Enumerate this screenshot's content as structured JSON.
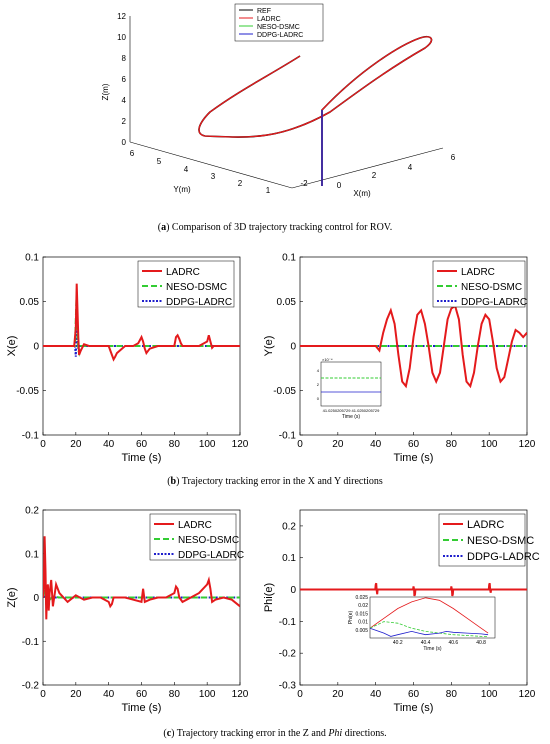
{
  "figure": {
    "captions": {
      "a": {
        "tag": "a",
        "text": " Comparison of 3D trajectory tracking control for ROV."
      },
      "b": {
        "tag": "b",
        "text": " Trajectory tracking error in the X and Y directions"
      },
      "c": {
        "tag": "c",
        "text": " Trajectory tracking error in the Z and ",
        "italic": "Phi",
        "text2": " directions."
      }
    }
  },
  "colors": {
    "ref": "#000000",
    "ladrc": "#e41a1c",
    "neso": "#33cc33",
    "ddpg": "#1f1fcc"
  },
  "chart_data": [
    {
      "type": "line3d",
      "legend": [
        "REF",
        "LADRC",
        "NESO-DSMC",
        "DDPG-LADRC"
      ],
      "xlabel": "X(m)",
      "ylabel": "Y(m)",
      "zlabel": "Z(m)",
      "xticks": [
        -2,
        0,
        2,
        4,
        6
      ],
      "yticks": [
        1,
        2,
        3,
        4,
        5,
        6
      ],
      "zticks": [
        0,
        2,
        4,
        6,
        8,
        10,
        12
      ],
      "legend_position": "top"
    },
    {
      "type": "line",
      "ylabel": "X(e)",
      "xlabel": "Time (s)",
      "xlim": [
        0,
        120
      ],
      "ylim": [
        -0.1,
        0.1
      ],
      "xticks": [
        0,
        20,
        40,
        60,
        80,
        100,
        120
      ],
      "yticks": [
        0.1,
        0.05,
        0,
        -0.05,
        -0.1
      ],
      "legend": [
        "LADRC",
        "NESO-DSMC",
        "DDPG-LADRC"
      ],
      "series": [
        {
          "name": "LADRC",
          "x": [
            0,
            19,
            20,
            20.5,
            21,
            21.5,
            22,
            23,
            25,
            28,
            30,
            40,
            41,
            42,
            43,
            44,
            45,
            50,
            55,
            58,
            60,
            61,
            62,
            63,
            65,
            70,
            80,
            81,
            82,
            83,
            84,
            85,
            90,
            95,
            100,
            101,
            102,
            103,
            104,
            110,
            120
          ],
          "y": [
            0,
            0,
            0.02,
            0.07,
            0.04,
            0.01,
            -0.01,
            -0.005,
            0.002,
            0,
            0,
            0,
            -0.005,
            -0.01,
            -0.015,
            -0.012,
            -0.008,
            0,
            0,
            0.003,
            0.01,
            0.005,
            -0.003,
            -0.008,
            -0.003,
            0,
            0,
            0.01,
            0.012,
            0.008,
            0.003,
            0,
            0,
            0,
            0.005,
            0.012,
            0.005,
            -0.002,
            0,
            0,
            0
          ]
        },
        {
          "name": "NESO-DSMC",
          "x": [
            0,
            19.5,
            20,
            20.5,
            21,
            21.5,
            22,
            23,
            40,
            60,
            80,
            100,
            120
          ],
          "y": [
            0,
            0,
            0.03,
            0.06,
            0.02,
            -0.005,
            -0.008,
            0,
            0,
            0,
            0,
            0,
            0
          ]
        },
        {
          "name": "DDPG-LADRC",
          "x": [
            0,
            19.5,
            20,
            20.5,
            21,
            21.5,
            22,
            23,
            40,
            60,
            80,
            100,
            120
          ],
          "y": [
            0,
            0,
            -0.012,
            0.02,
            0.005,
            -0.003,
            0,
            0,
            0,
            0,
            0,
            0,
            0
          ]
        }
      ]
    },
    {
      "type": "line",
      "ylabel": "Y(e)",
      "xlabel": "Time (s)",
      "xlim": [
        0,
        120
      ],
      "ylim": [
        -0.1,
        0.1
      ],
      "xticks": [
        0,
        20,
        40,
        60,
        80,
        100,
        120
      ],
      "yticks": [
        0.1,
        0.05,
        0,
        -0.05,
        -0.1
      ],
      "legend": [
        "LADRC",
        "NESO-DSMC",
        "DDPG-LADRC"
      ],
      "series": [
        {
          "name": "LADRC",
          "x": [
            0,
            40,
            42,
            44,
            46,
            48,
            50,
            52,
            54,
            56,
            58,
            60,
            62,
            64,
            66,
            68,
            70,
            72,
            74,
            76,
            78,
            80,
            82,
            84,
            86,
            88,
            90,
            92,
            94,
            96,
            98,
            100,
            102,
            104,
            106,
            108,
            110,
            112,
            114,
            116,
            118,
            120
          ],
          "y": [
            0,
            0,
            -0.005,
            0.015,
            0.03,
            0.04,
            0.025,
            -0.01,
            -0.04,
            -0.045,
            -0.025,
            0.01,
            0.035,
            0.04,
            0.025,
            0,
            -0.03,
            -0.04,
            -0.03,
            0,
            0.03,
            0.042,
            0.045,
            0.03,
            -0.01,
            -0.04,
            -0.045,
            -0.03,
            0,
            0.025,
            0.035,
            0.03,
            0.005,
            -0.025,
            -0.04,
            -0.035,
            -0.015,
            0.005,
            0.018,
            0.015,
            0.01,
            0.015
          ]
        },
        {
          "name": "NESO-DSMC",
          "x": [
            0,
            120
          ],
          "y": [
            0,
            0
          ]
        },
        {
          "name": "DDPG-LADRC",
          "x": [
            0,
            120
          ],
          "y": [
            0,
            0
          ]
        }
      ],
      "inset": {
        "xtick": "41.0250205729 41.0250205729",
        "xlabel": "Time (s)",
        "exponent": "×10⁻⁴",
        "yticks": [
          "4",
          "2",
          "0"
        ]
      }
    },
    {
      "type": "line",
      "ylabel": "Z(e)",
      "xlabel": "Time (s)",
      "xlim": [
        0,
        120
      ],
      "ylim": [
        -0.2,
        0.2
      ],
      "xticks": [
        0,
        20,
        40,
        60,
        80,
        100,
        120
      ],
      "yticks": [
        0.2,
        0.1,
        0,
        -0.1,
        -0.2
      ],
      "legend": [
        "LADRC",
        "NESO-DSMC",
        "DDPG-LADRC"
      ],
      "series": [
        {
          "name": "LADRC",
          "x": [
            0,
            0.5,
            1,
            1.5,
            2,
            2.5,
            3,
            3.5,
            4,
            5,
            6,
            8,
            10,
            15,
            20,
            25,
            30,
            35,
            40,
            41,
            42,
            43,
            45,
            50,
            55,
            60,
            61,
            62,
            65,
            70,
            75,
            80,
            81,
            82,
            83,
            85,
            90,
            95,
            100,
            101,
            102,
            103,
            105,
            110,
            115,
            120
          ],
          "y": [
            0,
            0.02,
            0.14,
            0.06,
            -0.05,
            0.02,
            0.03,
            -0.03,
            0.01,
            0.04,
            -0.02,
            0.03,
            0.01,
            -0.01,
            0.005,
            -0.005,
            0,
            0,
            -0.01,
            -0.02,
            -0.015,
            0,
            0,
            0,
            -0.005,
            -0.01,
            0.02,
            -0.01,
            -0.005,
            0,
            0,
            0.01,
            0.025,
            0.02,
            0,
            -0.01,
            0,
            0.01,
            0.03,
            0.04,
            0.02,
            -0.01,
            -0.005,
            0,
            -0.005,
            -0.02
          ]
        },
        {
          "name": "NESO-DSMC",
          "x": [
            0,
            0.5,
            1,
            1.5,
            2,
            3,
            4,
            6,
            10,
            120
          ],
          "y": [
            0,
            0.01,
            0.06,
            0.02,
            -0.02,
            0.01,
            -0.005,
            0.002,
            0,
            0
          ]
        },
        {
          "name": "DDPG-LADRC",
          "x": [
            0,
            1,
            2,
            3,
            120
          ],
          "y": [
            0,
            0.01,
            -0.005,
            0,
            0
          ]
        }
      ]
    },
    {
      "type": "line",
      "ylabel": "Phi(e)",
      "xlabel": "Time (s)",
      "xlim": [
        0,
        120
      ],
      "ylim": [
        -0.3,
        0.25
      ],
      "xticks": [
        0,
        20,
        40,
        60,
        80,
        100,
        120
      ],
      "yticks": [
        0.2,
        0.1,
        0,
        -0.1,
        -0.2,
        -0.3
      ],
      "legend": [
        "LADRC",
        "NESO-DSMC",
        "DDPG-LADRC"
      ],
      "series": [
        {
          "name": "LADRC",
          "x": [
            0,
            39.8,
            40,
            40.3,
            40.5,
            40.8,
            41,
            59.8,
            60,
            60.3,
            60.5,
            60.8,
            61,
            79.8,
            80,
            80.3,
            80.5,
            80.8,
            81,
            99.8,
            100,
            100.3,
            100.5,
            100.8,
            101,
            120
          ],
          "y": [
            0,
            0,
            0.015,
            0.02,
            0,
            -0.015,
            0,
            0,
            0.01,
            0,
            -0.02,
            -0.015,
            0,
            0,
            0.01,
            0,
            -0.02,
            -0.015,
            0,
            0,
            0.015,
            0.02,
            0,
            -0.01,
            0,
            0
          ]
        },
        {
          "name": "NESO-DSMC",
          "x": [
            0,
            120
          ],
          "y": [
            0,
            0
          ]
        },
        {
          "name": "DDPG-LADRC",
          "x": [
            0,
            120
          ],
          "y": [
            0,
            0
          ]
        }
      ],
      "inset": {
        "xlim": [
          40.0,
          40.9
        ],
        "ylim": [
          0,
          0.025
        ],
        "xticks": [
          40.2,
          40.4,
          40.6,
          40.8
        ],
        "yticks": [
          0.025,
          0.02,
          0.015,
          0.01,
          0.005
        ],
        "ylabel": "Phi(e)",
        "xlabel": "Time (s)",
        "series": [
          {
            "name": "LADRC",
            "x": [
              40.0,
              40.1,
              40.2,
              40.3,
              40.4,
              40.5,
              40.6,
              40.7,
              40.8,
              40.85
            ],
            "y": [
              0.006,
              0.012,
              0.018,
              0.022,
              0.0245,
              0.023,
              0.018,
              0.012,
              0.006,
              0.003
            ]
          },
          {
            "name": "NESO-DSMC",
            "x": [
              40.0,
              40.1,
              40.2,
              40.3,
              40.4,
              40.5,
              40.6,
              40.7,
              40.8,
              40.85
            ],
            "y": [
              0.006,
              0.01,
              0.009,
              0.006,
              0.004,
              0.003,
              0.002,
              0.0015,
              0.001,
              0.001
            ]
          },
          {
            "name": "DDPG-LADRC",
            "x": [
              40.0,
              40.1,
              40.15,
              40.2,
              40.3,
              40.35,
              40.4,
              40.5,
              40.55,
              40.6,
              40.7,
              40.8,
              40.85
            ],
            "y": [
              0.006,
              0.003,
              0.001,
              0.002,
              0.004,
              0.003,
              0.002,
              0.003,
              0.004,
              0.0035,
              0.003,
              0.0025,
              0.002
            ]
          }
        ]
      }
    }
  ]
}
